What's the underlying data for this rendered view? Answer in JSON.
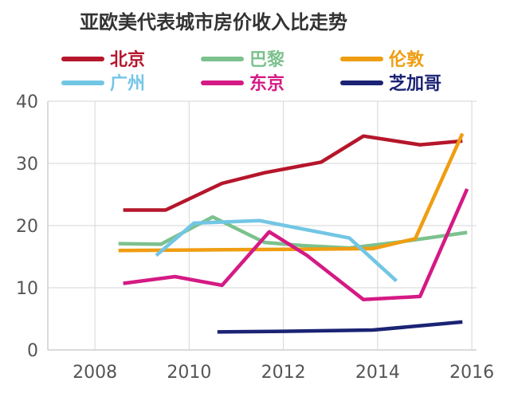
{
  "chart_data": {
    "type": "line",
    "title": "亚欧美代表城市房价收入比走势",
    "xlabel": "",
    "ylabel": "",
    "xlim": [
      2007,
      2016.1
    ],
    "ylim": [
      0,
      40
    ],
    "xticks": [
      2008,
      2010,
      2012,
      2014,
      2016
    ],
    "yticks": [
      0,
      10,
      20,
      30,
      40
    ],
    "grid": true,
    "legend_position": "top",
    "series": [
      {
        "name": "北京",
        "color": "#b5162b",
        "points": [
          [
            2008.6,
            22.5
          ],
          [
            2009.5,
            22.5
          ],
          [
            2010.7,
            26.8
          ],
          [
            2011.6,
            28.5
          ],
          [
            2012.8,
            30.2
          ],
          [
            2013.7,
            34.4
          ],
          [
            2014.9,
            33.0
          ],
          [
            2015.8,
            33.6
          ]
        ]
      },
      {
        "name": "巴黎",
        "color": "#7cc18e",
        "points": [
          [
            2008.5,
            17.1
          ],
          [
            2009.4,
            17.0
          ],
          [
            2010.5,
            21.4
          ],
          [
            2011.6,
            17.3
          ],
          [
            2012.4,
            16.8
          ],
          [
            2013.4,
            16.4
          ],
          [
            2014.5,
            17.4
          ],
          [
            2015.9,
            18.9
          ]
        ]
      },
      {
        "name": "伦敦",
        "color": "#ef9d12",
        "points": [
          [
            2008.5,
            16.0
          ],
          [
            2010.5,
            16.1
          ],
          [
            2012.5,
            16.2
          ],
          [
            2013.9,
            16.3
          ],
          [
            2014.8,
            17.9
          ],
          [
            2015.8,
            34.8
          ]
        ]
      },
      {
        "name": "广州",
        "color": "#72c6e4",
        "points": [
          [
            2009.3,
            15.2
          ],
          [
            2010.1,
            20.4
          ],
          [
            2011.5,
            20.8
          ],
          [
            2013.4,
            18.0
          ],
          [
            2014.4,
            11.1
          ]
        ]
      },
      {
        "name": "东京",
        "color": "#d41a84",
        "points": [
          [
            2008.6,
            10.7
          ],
          [
            2009.7,
            11.8
          ],
          [
            2010.7,
            10.4
          ],
          [
            2011.7,
            19.0
          ],
          [
            2012.5,
            15.2
          ],
          [
            2013.7,
            8.1
          ],
          [
            2014.9,
            8.6
          ],
          [
            2015.9,
            25.9
          ]
        ]
      },
      {
        "name": "芝加哥",
        "color": "#1b2374",
        "points": [
          [
            2010.6,
            2.9
          ],
          [
            2012.0,
            3.0
          ],
          [
            2013.9,
            3.2
          ],
          [
            2015.8,
            4.5
          ]
        ]
      }
    ]
  }
}
